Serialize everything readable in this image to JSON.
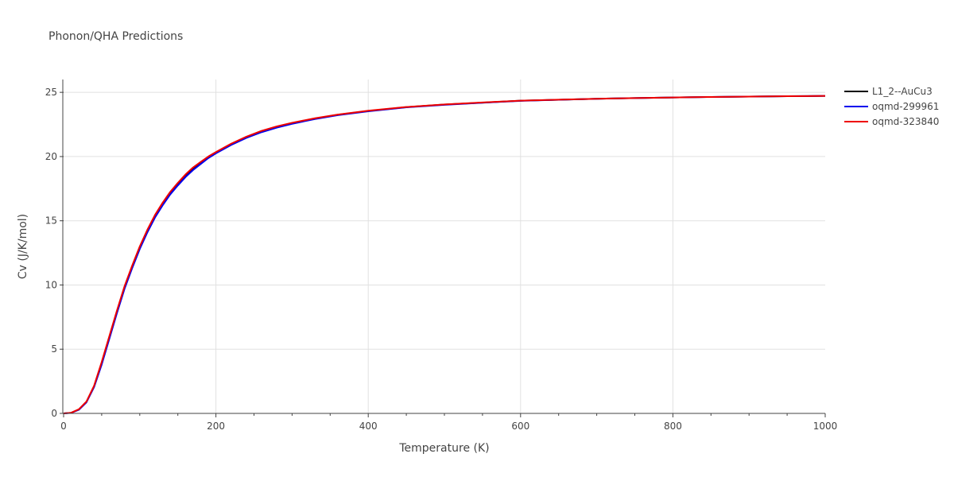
{
  "chart_data": {
    "type": "line",
    "title": "Phonon/QHA Predictions",
    "xlabel": "Temperature (K)",
    "ylabel": "Cv (J/K/mol)",
    "xlim": [
      0,
      1000
    ],
    "ylim": [
      0,
      26
    ],
    "xticks": [
      0,
      200,
      400,
      600,
      800,
      1000
    ],
    "yticks": [
      0,
      5,
      10,
      15,
      20,
      25
    ],
    "grid": true,
    "legend_position": "right",
    "series": [
      {
        "name": "L1_2--AuCu3",
        "color": "#000000",
        "x": [
          0,
          10,
          20,
          30,
          40,
          50,
          60,
          70,
          80,
          90,
          100,
          110,
          120,
          130,
          140,
          150,
          160,
          170,
          180,
          190,
          200,
          220,
          240,
          260,
          280,
          300,
          330,
          360,
          400,
          450,
          500,
          550,
          600,
          650,
          700,
          750,
          800,
          850,
          900,
          950,
          1000
        ],
        "y": [
          0,
          0.05,
          0.3,
          0.9,
          2.1,
          3.9,
          5.9,
          7.9,
          9.8,
          11.4,
          12.9,
          14.2,
          15.35,
          16.3,
          17.15,
          17.85,
          18.5,
          19.05,
          19.5,
          19.95,
          20.3,
          20.95,
          21.5,
          21.95,
          22.3,
          22.6,
          22.95,
          23.25,
          23.55,
          23.85,
          24.05,
          24.2,
          24.35,
          24.42,
          24.5,
          24.55,
          24.6,
          24.64,
          24.67,
          24.7,
          24.72
        ]
      },
      {
        "name": "oqmd-299961",
        "color": "#0000ee",
        "x": [
          0,
          10,
          20,
          30,
          40,
          50,
          60,
          70,
          80,
          90,
          100,
          110,
          120,
          130,
          140,
          150,
          160,
          170,
          180,
          190,
          200,
          220,
          240,
          260,
          280,
          300,
          330,
          360,
          400,
          450,
          500,
          550,
          600,
          650,
          700,
          750,
          800,
          850,
          900,
          950,
          1000
        ],
        "y": [
          0,
          0.04,
          0.28,
          0.86,
          2.05,
          3.8,
          5.8,
          7.8,
          9.7,
          11.3,
          12.8,
          14.1,
          15.25,
          16.2,
          17.05,
          17.75,
          18.4,
          18.95,
          19.42,
          19.88,
          20.25,
          20.9,
          21.45,
          21.9,
          22.25,
          22.55,
          22.92,
          23.22,
          23.52,
          23.83,
          24.03,
          24.19,
          24.34,
          24.42,
          24.5,
          24.55,
          24.6,
          24.64,
          24.67,
          24.7,
          24.72
        ]
      },
      {
        "name": "oqmd-323840",
        "color": "#ee0000",
        "x": [
          0,
          10,
          20,
          30,
          40,
          50,
          60,
          70,
          80,
          90,
          100,
          110,
          120,
          130,
          140,
          150,
          160,
          170,
          180,
          190,
          200,
          220,
          240,
          260,
          280,
          300,
          330,
          360,
          400,
          450,
          500,
          550,
          600,
          650,
          700,
          750,
          800,
          850,
          900,
          950,
          1000
        ],
        "y": [
          0,
          0.05,
          0.32,
          0.92,
          2.15,
          4.0,
          6.0,
          8.0,
          9.9,
          11.5,
          13.0,
          14.3,
          15.45,
          16.4,
          17.25,
          17.95,
          18.6,
          19.15,
          19.58,
          20.0,
          20.35,
          21.0,
          21.55,
          22.0,
          22.35,
          22.63,
          22.98,
          23.27,
          23.57,
          23.86,
          24.06,
          24.21,
          24.35,
          24.43,
          24.5,
          24.55,
          24.6,
          24.64,
          24.67,
          24.7,
          24.72
        ]
      }
    ]
  }
}
